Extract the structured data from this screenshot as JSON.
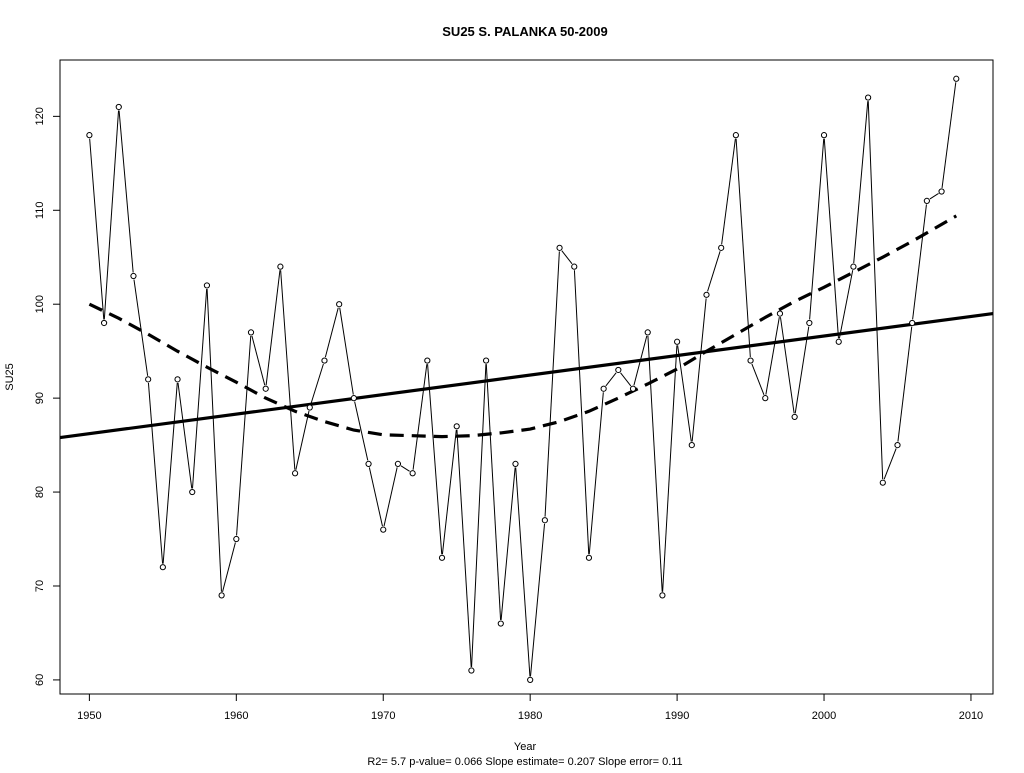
{
  "chart_data": {
    "type": "line",
    "title": "SU25   S. PALANKA 50-2009",
    "xlabel": "Year",
    "ylabel": "SU25",
    "footer": "R2= 5.7  p-value= 0.066  Slope estimate= 0.207  Slope error= 0.11",
    "xlim": [
      1948,
      2011.5
    ],
    "ylim": [
      58.5,
      126
    ],
    "x_ticks": [
      1950,
      1960,
      1970,
      1980,
      1990,
      2000,
      2010
    ],
    "y_ticks": [
      60,
      70,
      80,
      90,
      100,
      110,
      120
    ],
    "grid": false,
    "series": [
      {
        "style": "line-with-open-circles",
        "x": [
          1950,
          1951,
          1952,
          1953,
          1954,
          1955,
          1956,
          1957,
          1958,
          1959,
          1960,
          1961,
          1962,
          1963,
          1964,
          1965,
          1966,
          1967,
          1968,
          1969,
          1970,
          1971,
          1972,
          1973,
          1974,
          1975,
          1976,
          1977,
          1978,
          1979,
          1980,
          1981,
          1982,
          1983,
          1984,
          1985,
          1986,
          1987,
          1988,
          1989,
          1990,
          1991,
          1992,
          1993,
          1994,
          1995,
          1996,
          1997,
          1998,
          1999,
          2000,
          2001,
          2002,
          2003,
          2004,
          2005,
          2006,
          2007,
          2008,
          2009
        ],
        "y": [
          118,
          98,
          121,
          103,
          92,
          72,
          92,
          80,
          102,
          69,
          75,
          97,
          91,
          104,
          82,
          89,
          94,
          100,
          90,
          83,
          76,
          83,
          82,
          94,
          73,
          87,
          61,
          94,
          66,
          83,
          60,
          77,
          106,
          104,
          73,
          91,
          93,
          91,
          97,
          69,
          96,
          85,
          101,
          106,
          118,
          94,
          90,
          99,
          88,
          98,
          118,
          96,
          104,
          122,
          81,
          85,
          98,
          111,
          112,
          124
        ]
      }
    ],
    "trend_line": {
      "style": "solid-thick",
      "x": [
        1948,
        2011.5
      ],
      "y": [
        85.8,
        99.0
      ]
    },
    "smooth_curve": {
      "style": "dashed-thick",
      "x": [
        1950,
        1952,
        1954,
        1956,
        1958,
        1960,
        1962,
        1964,
        1966,
        1968,
        1970,
        1972,
        1974,
        1976,
        1978,
        1980,
        1982,
        1984,
        1986,
        1988,
        1990,
        1992,
        1994,
        1996,
        1998,
        2000,
        2002,
        2004,
        2006,
        2009
      ],
      "y": [
        100,
        98.5,
        96.8,
        95,
        93.3,
        91.7,
        90,
        88.6,
        87.5,
        86.6,
        86.1,
        86,
        85.9,
        86,
        86.3,
        86.7,
        87.5,
        88.6,
        90,
        91.5,
        93.1,
        95,
        96.8,
        98.6,
        100.3,
        101.8,
        103.4,
        105,
        106.7,
        109.4
      ]
    }
  }
}
